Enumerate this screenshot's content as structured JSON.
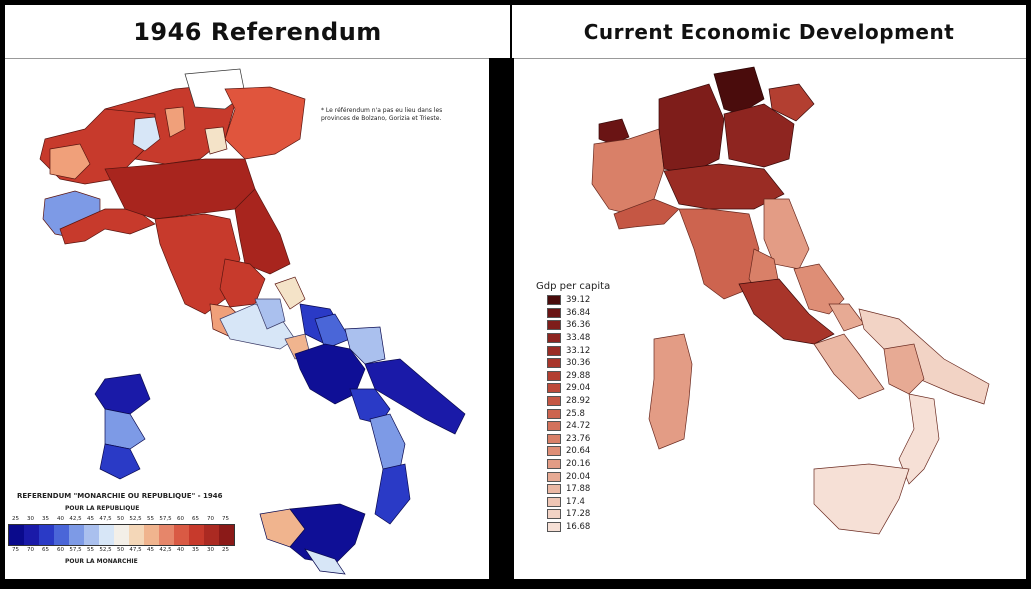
{
  "left_panel": {
    "title": "1946 Referendum",
    "note": "* Le référendum n'a pas eu lieu dans les provinces de Bolzano, Gorizia et Trieste.",
    "legend_title": "REFERENDUM \"MONARCHIE OU REPUBLIQUE\" - 1946",
    "legend_top_label": "POUR LA REPUBLIQUE",
    "legend_bottom_label": "POUR LA MONARCHIE",
    "top_ticks": [
      "25",
      "30",
      "35",
      "40",
      "42,5",
      "45",
      "47,5",
      "50",
      "52,5",
      "55",
      "57,5",
      "60",
      "65",
      "70",
      "75"
    ],
    "bottom_ticks": [
      "75",
      "70",
      "65",
      "60",
      "57,5",
      "55",
      "52,5",
      "50",
      "47,5",
      "45",
      "42,5",
      "40",
      "35",
      "30",
      "25"
    ],
    "ramp_colors": [
      "#0a0a8c",
      "#1a1aa8",
      "#2a3ac6",
      "#4a66d8",
      "#7d9ae6",
      "#aac0ee",
      "#d7e6f7",
      "#f3efe8",
      "#f4d7b8",
      "#f0b48e",
      "#e6866a",
      "#d95a44",
      "#c73a2c",
      "#ab2a22",
      "#8b1a18"
    ],
    "colors": {
      "republic_strong": "#a8251e",
      "republic": "#c73a2c",
      "republic_mid": "#e0553d",
      "republic_light": "#f0a07a",
      "neutral": "#f4e3c8",
      "pale_blue": "#d7e6f7",
      "light_blue": "#7d9ae6",
      "blue": "#2a3ac6",
      "monarchy_strong": "#0f0f96"
    }
  },
  "right_panel": {
    "title": "Current Economic Development",
    "legend_title": "Gdp per capita",
    "legend_values": [
      "39.12",
      "36.84",
      "36.36",
      "33.48",
      "33.12",
      "30.36",
      "29.88",
      "29.04",
      "28.92",
      "25.8",
      "24.72",
      "23.76",
      "20.64",
      "20.16",
      "20.04",
      "17.88",
      "17.4",
      "17.28",
      "16.68"
    ],
    "legend_colors": [
      "#4a0c0c",
      "#6a1414",
      "#7e1d1a",
      "#8e2520",
      "#9a2c24",
      "#a8352a",
      "#b33f31",
      "#bd4a3a",
      "#c55744",
      "#cd644f",
      "#d3725c",
      "#d98068",
      "#de8e76",
      "#e39c85",
      "#e7aa94",
      "#ebb8a4",
      "#efc6b5",
      "#f2d3c5",
      "#f6e0d6"
    ]
  }
}
